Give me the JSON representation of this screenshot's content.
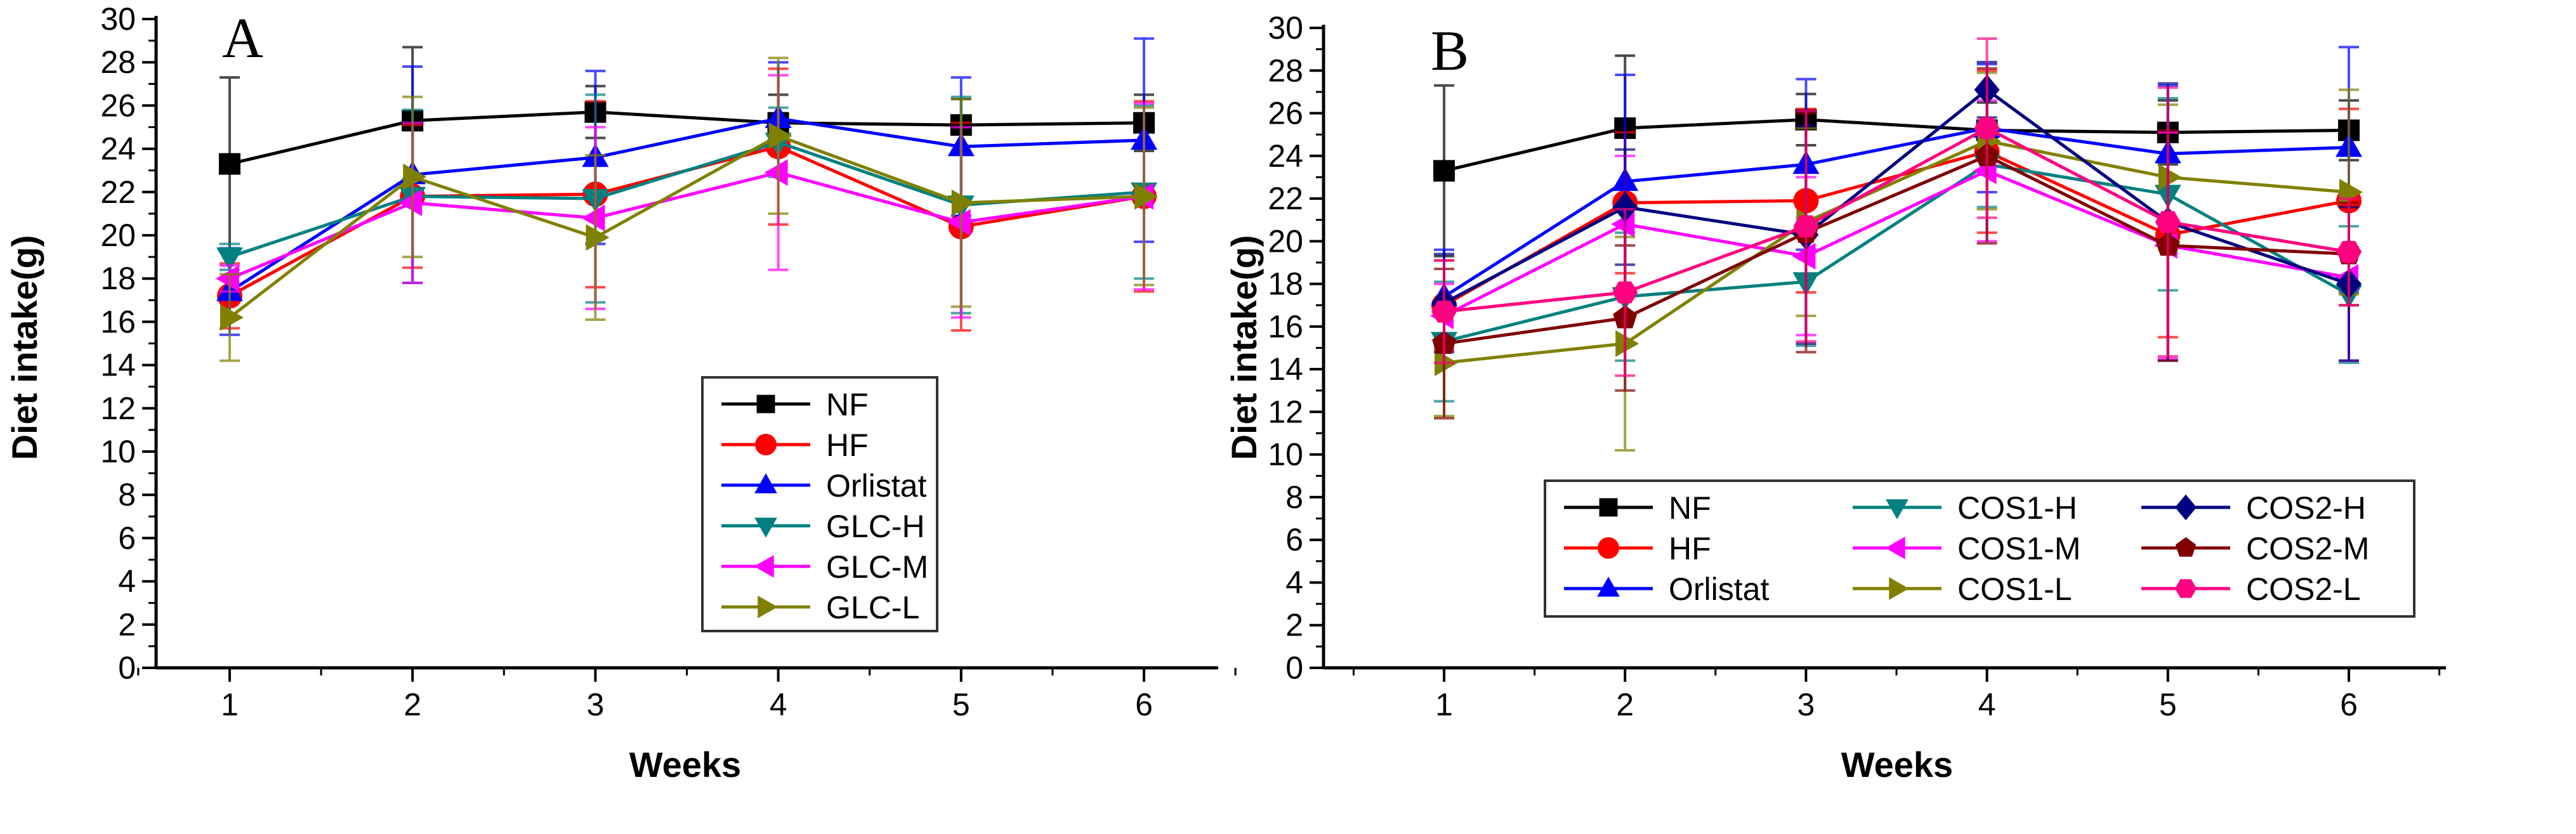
{
  "chart_data": [
    {
      "type": "line",
      "panel_label": "A",
      "xlabel": "Weeks",
      "ylabel": "Diet intake(g)",
      "x": [
        1,
        2,
        3,
        4,
        5,
        6
      ],
      "xlim": [
        0.5,
        6.5
      ],
      "ylim": [
        0,
        30
      ],
      "yticks": [
        0,
        2,
        4,
        6,
        8,
        10,
        12,
        14,
        16,
        18,
        20,
        22,
        24,
        26,
        28,
        30
      ],
      "legend_position": "center",
      "series": [
        {
          "name": "NF",
          "color": "#000000",
          "marker": "square",
          "values": [
            23.3,
            25.3,
            25.7,
            25.2,
            25.1,
            25.2
          ],
          "err": [
            4.0,
            3.4,
            1.2,
            1.3,
            1.2,
            1.3
          ]
        },
        {
          "name": "HF",
          "color": "#ff0000",
          "marker": "circle",
          "values": [
            17.2,
            21.8,
            21.9,
            24.1,
            20.4,
            21.8
          ],
          "err": [
            1.5,
            3.3,
            4.3,
            3.6,
            4.8,
            4.4
          ]
        },
        {
          "name": "Orlistat",
          "color": "#0000ff",
          "marker": "triangle-up",
          "values": [
            17.4,
            22.8,
            23.6,
            25.4,
            24.1,
            24.4
          ],
          "err": [
            2.0,
            5.0,
            4.0,
            2.6,
            3.2,
            4.7
          ]
        },
        {
          "name": "GLC-H",
          "color": "#008080",
          "marker": "triangle-down",
          "values": [
            19.0,
            21.8,
            21.7,
            24.3,
            21.4,
            22.0
          ],
          "err": [
            0.6,
            4.0,
            4.8,
            1.6,
            5.0,
            4.0
          ]
        },
        {
          "name": "GLC-M",
          "color": "#ff00ff",
          "marker": "triangle-left",
          "values": [
            18.0,
            21.5,
            20.8,
            22.9,
            20.6,
            21.8
          ],
          "err": [
            0.6,
            3.7,
            4.2,
            4.5,
            4.4,
            4.3
          ]
        },
        {
          "name": "GLC-L",
          "color": "#808000",
          "marker": "triangle-right",
          "values": [
            16.2,
            22.7,
            19.9,
            24.6,
            21.5,
            21.8
          ],
          "err": [
            2.0,
            3.7,
            3.8,
            3.6,
            4.8,
            4.1
          ]
        }
      ]
    },
    {
      "type": "line",
      "panel_label": "B",
      "xlabel": "Weeks",
      "ylabel": "Diet intake(g)",
      "x": [
        1,
        2,
        3,
        4,
        5,
        6
      ],
      "xlim": [
        0.5,
        6.5
      ],
      "ylim": [
        0,
        30
      ],
      "yticks": [
        0,
        2,
        4,
        6,
        8,
        10,
        12,
        14,
        16,
        18,
        20,
        22,
        24,
        26,
        28,
        30
      ],
      "legend_position": "bottom-center",
      "series": [
        {
          "name": "NF",
          "color": "#000000",
          "marker": "square",
          "values": [
            23.3,
            25.3,
            25.7,
            25.2,
            25.1,
            25.2
          ],
          "err": [
            4.0,
            3.4,
            1.2,
            1.3,
            1.5,
            1.4
          ]
        },
        {
          "name": "HF",
          "color": "#ff0000",
          "marker": "circle",
          "values": [
            17.0,
            21.8,
            21.9,
            24.2,
            20.3,
            21.9
          ],
          "err": [
            2.1,
            3.3,
            4.3,
            3.8,
            4.8,
            4.3
          ]
        },
        {
          "name": "Orlistat",
          "color": "#0000ff",
          "marker": "triangle-up",
          "values": [
            17.4,
            22.8,
            23.6,
            25.3,
            24.1,
            24.4
          ],
          "err": [
            2.2,
            5.0,
            4.0,
            3.0,
            3.2,
            4.7
          ]
        },
        {
          "name": "COS1-H",
          "color": "#008080",
          "marker": "triangle-down",
          "values": [
            15.3,
            17.4,
            18.1,
            23.6,
            22.2,
            17.5
          ],
          "err": [
            2.8,
            3.0,
            3.0,
            2.0,
            4.5,
            3.2
          ]
        },
        {
          "name": "COS1-M",
          "color": "#ff00ff",
          "marker": "triangle-left",
          "values": [
            16.5,
            20.8,
            19.3,
            23.3,
            19.8,
            18.3
          ],
          "err": [
            1.5,
            3.2,
            3.7,
            3.3,
            5.3,
            3.9
          ]
        },
        {
          "name": "COS1-L",
          "color": "#808000",
          "marker": "triangle-right",
          "values": [
            14.3,
            15.2,
            20.9,
            24.7,
            23.0,
            22.3
          ],
          "err": [
            2.5,
            5.0,
            4.4,
            3.2,
            3.4,
            4.8
          ]
        },
        {
          "name": "COS2-H",
          "color": "#000080",
          "marker": "diamond",
          "values": [
            17.1,
            21.6,
            20.3,
            27.1,
            20.9,
            18.0
          ],
          "err": [
            2.3,
            2.7,
            5.1,
            1.3,
            6.5,
            3.6
          ]
        },
        {
          "name": "COS2-M",
          "color": "#800000",
          "marker": "pentagon",
          "values": [
            15.2,
            16.4,
            20.4,
            24.0,
            19.8,
            19.4
          ],
          "err": [
            3.5,
            3.4,
            5.6,
            4.1,
            5.4,
            2.4
          ]
        },
        {
          "name": "COS2-L",
          "color": "#ff0080",
          "marker": "hexagon",
          "values": [
            16.7,
            17.6,
            20.7,
            25.3,
            20.9,
            19.5
          ],
          "err": [
            2.4,
            3.9,
            5.4,
            4.2,
            6.3,
            2.5
          ]
        }
      ]
    }
  ]
}
